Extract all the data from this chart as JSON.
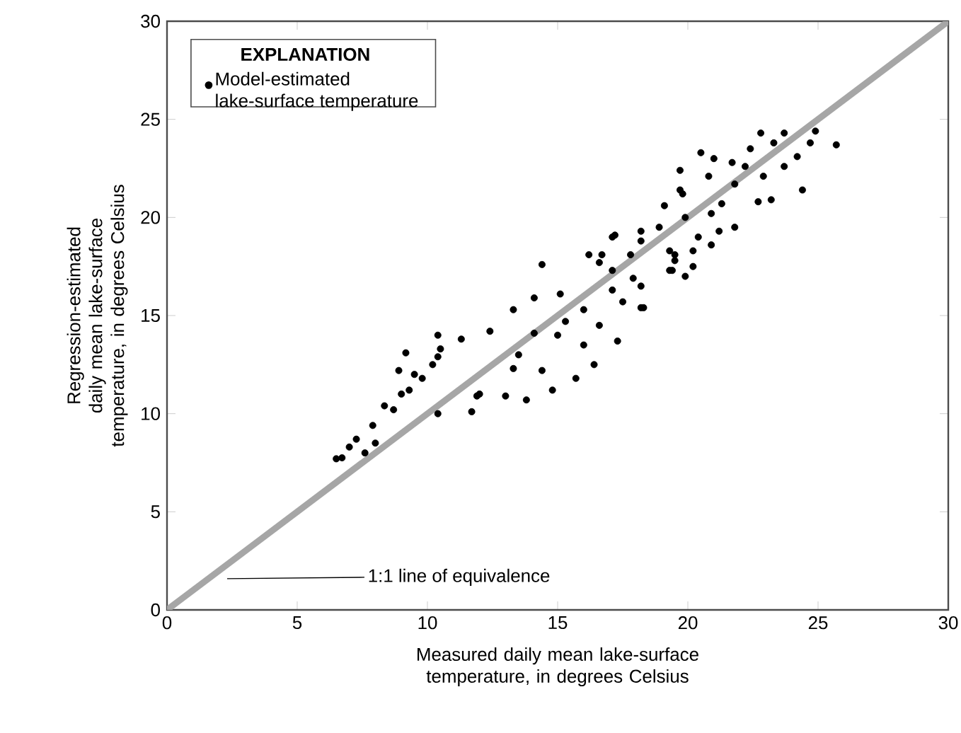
{
  "chart_data": {
    "type": "scatter",
    "xlabel": "Measured daily mean lake-surface temperature, in degrees Celsius",
    "ylabel": "Regression-estimated daily mean lake-surface temperature, in degrees Celsius",
    "legend_title": "EXPLANATION",
    "legend": "top left",
    "xlim": [
      0,
      30
    ],
    "ylim": [
      0,
      30
    ],
    "xticks": [
      0,
      5,
      10,
      15,
      20,
      25,
      30
    ],
    "yticks": [
      0,
      5,
      10,
      15,
      20,
      25,
      30
    ],
    "annotations": [
      "1:1 line of equivalence"
    ],
    "series": [
      {
        "type": "line",
        "color": "#a6a6a6",
        "x": [
          0,
          30
        ],
        "values": [
          0,
          30
        ]
      },
      {
        "type": "scatter",
        "name": "Model-estimated lake-surface temperature",
        "color": "#000000",
        "x": [
          6.5,
          6.72,
          7.0,
          7.27,
          7.6,
          7.9,
          8.0,
          8.35,
          8.7,
          8.9,
          9.0,
          9.17,
          9.3,
          9.5,
          9.8,
          10.2,
          10.4,
          10.4,
          10.4,
          10.5,
          11.3,
          11.7,
          11.9,
          12.0,
          12.4,
          13.0,
          13.3,
          13.3,
          13.5,
          13.8,
          14.1,
          14.1,
          14.4,
          14.4,
          14.8,
          15.0,
          15.1,
          15.3,
          15.7,
          16.0,
          16.0,
          16.2,
          16.4,
          16.6,
          16.6,
          16.7,
          17.1,
          17.1,
          17.1,
          17.2,
          17.3,
          17.5,
          17.8,
          17.9,
          18.2,
          18.2,
          18.2,
          18.2,
          18.3,
          18.9,
          19.1,
          19.3,
          19.3,
          19.4,
          19.5,
          19.5,
          19.7,
          19.7,
          19.8,
          19.9,
          19.9,
          20.2,
          20.2,
          20.4,
          20.5,
          20.8,
          20.9,
          20.9,
          21.0,
          21.2,
          21.3,
          21.7,
          21.8,
          21.8,
          22.2,
          22.4,
          22.7,
          22.8,
          22.9,
          23.2,
          23.3,
          23.7,
          23.7,
          24.2,
          24.4,
          24.7,
          24.9,
          25.7
        ],
        "values": [
          7.7,
          7.75,
          8.3,
          8.7,
          8.0,
          9.4,
          8.5,
          10.4,
          10.2,
          12.2,
          11.0,
          13.1,
          11.2,
          12.0,
          11.8,
          12.5,
          12.9,
          14.0,
          10.0,
          13.3,
          13.8,
          10.1,
          10.9,
          11.0,
          14.2,
          10.9,
          12.3,
          15.3,
          13.0,
          10.7,
          14.1,
          15.9,
          12.2,
          17.6,
          11.2,
          14.0,
          16.1,
          14.7,
          11.8,
          15.3,
          13.5,
          18.1,
          12.5,
          14.5,
          17.7,
          18.1,
          19.0,
          17.3,
          16.3,
          19.1,
          13.7,
          15.7,
          18.1,
          16.9,
          19.3,
          15.4,
          18.8,
          16.5,
          15.4,
          19.5,
          20.6,
          17.3,
          18.3,
          17.3,
          18.1,
          17.8,
          21.4,
          22.4,
          21.2,
          17.0,
          20.0,
          17.5,
          18.3,
          19.0,
          23.3,
          22.1,
          18.6,
          20.2,
          23.0,
          19.3,
          20.7,
          22.8,
          19.5,
          21.7,
          22.6,
          23.5,
          20.8,
          24.3,
          22.1,
          20.9,
          23.8,
          24.3,
          22.6,
          23.1,
          21.4,
          23.8,
          24.4,
          23.7
        ]
      }
    ]
  }
}
